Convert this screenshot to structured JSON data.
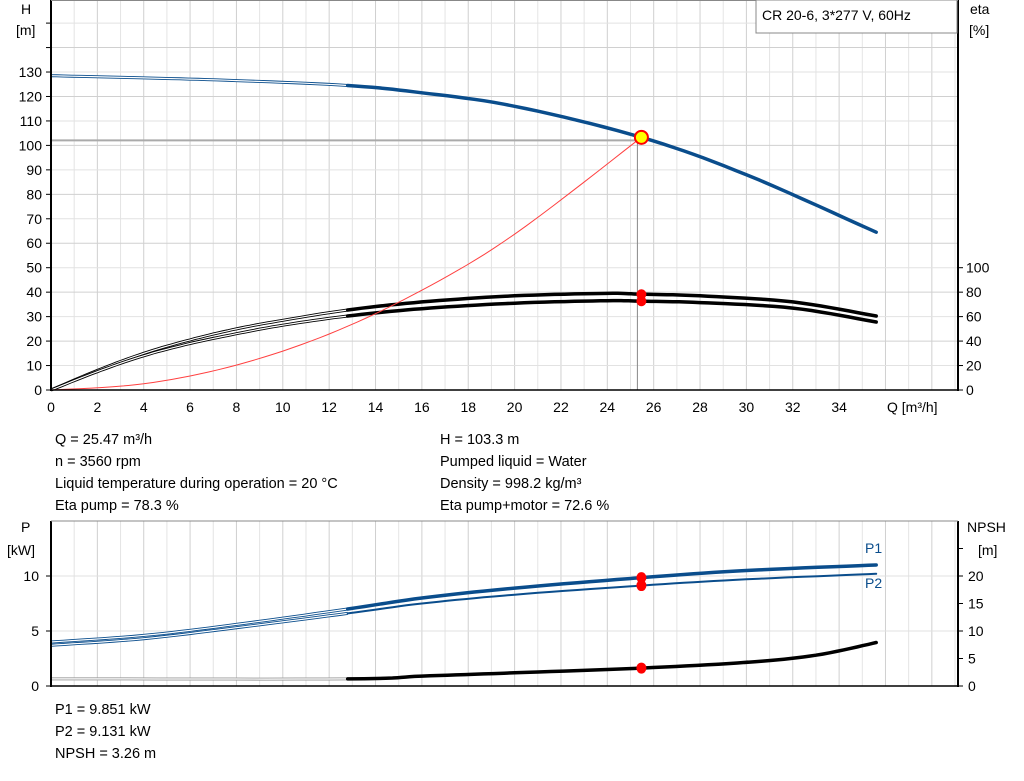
{
  "chart_data": [
    {
      "type": "line",
      "title": "CR 20-6, 3*277 V, 60Hz",
      "xlabel": "Q [m³/h]",
      "ylabel": "H",
      "ylabel_unit": "[m]",
      "y2label": "eta",
      "y2label_unit": "[%]",
      "xlim": [
        0,
        39
      ],
      "ylim": [
        0,
        159
      ],
      "y2lim": [
        0,
        318
      ],
      "x_ticks": [
        0,
        2,
        4,
        6,
        8,
        10,
        12,
        14,
        16,
        18,
        20,
        22,
        24,
        26,
        28,
        30,
        32,
        34
      ],
      "y_ticks": [
        0,
        10,
        20,
        30,
        40,
        50,
        60,
        70,
        80,
        90,
        100,
        110,
        120,
        130
      ],
      "y2_ticks": [
        0,
        20,
        40,
        60,
        80,
        100
      ],
      "grid": true,
      "operating_point": {
        "Q": 25.47,
        "H": 103.3,
        "eta_pump": 78.3,
        "eta_pump_motor": 72.6
      },
      "series": [
        {
          "key": "H",
          "axis": "left",
          "color": "#0a4d8c",
          "thin_until": 12.8,
          "points": [
            [
              0,
              128.5
            ],
            [
              4,
              127.6
            ],
            [
              8,
              126.5
            ],
            [
              12.8,
              124.5
            ],
            [
              16,
              121.5
            ],
            [
              20,
              116
            ],
            [
              25.47,
              103.3
            ],
            [
              30,
              88
            ],
            [
              35.6,
              64.5
            ]
          ]
        },
        {
          "key": "eta_pump",
          "axis": "right",
          "color": "#000000",
          "thin_until": 12.8,
          "points": [
            [
              0,
              0
            ],
            [
              2,
              16
            ],
            [
              4,
              30
            ],
            [
              6,
              41
            ],
            [
              8,
              50
            ],
            [
              10,
              57
            ],
            [
              12.8,
              65.4
            ],
            [
              16,
              72
            ],
            [
              20,
              77
            ],
            [
              24,
              79
            ],
            [
              25.47,
              78.3
            ],
            [
              28,
              77
            ],
            [
              32,
              72
            ],
            [
              35.6,
              60.5
            ]
          ]
        },
        {
          "key": "eta_pump_motor",
          "axis": "right",
          "color": "#000000",
          "thin_until": 12.8,
          "points": [
            [
              0,
              0
            ],
            [
              2,
              15
            ],
            [
              4,
              28
            ],
            [
              6,
              38
            ],
            [
              8,
              46
            ],
            [
              10,
              53
            ],
            [
              12.8,
              60.5
            ],
            [
              16,
              66.5
            ],
            [
              20,
              71
            ],
            [
              24,
              73
            ],
            [
              25.47,
              72.6
            ],
            [
              28,
              71.5
            ],
            [
              32,
              67
            ],
            [
              35.6,
              55.6
            ]
          ]
        },
        {
          "key": "system_curve",
          "axis": "left",
          "color": "#ff4040",
          "points": [
            [
              0,
              0
            ],
            [
              4,
              2.55
            ],
            [
              8,
              10.2
            ],
            [
              12,
              22.9
            ],
            [
              16,
              40.8
            ],
            [
              20,
              63.7
            ],
            [
              25.47,
              103.3
            ]
          ]
        }
      ]
    },
    {
      "type": "line",
      "ylabel": "P",
      "ylabel_unit": "[kW]",
      "y2label": "NPSH",
      "y2label_unit": "[m]",
      "xlim": [
        0,
        39
      ],
      "ylim": [
        0,
        15
      ],
      "y2lim": [
        0,
        30
      ],
      "y_ticks": [
        0,
        5,
        10
      ],
      "y2_ticks": [
        0,
        5,
        10,
        15,
        20
      ],
      "grid": true,
      "operating_point": {
        "Q": 25.47,
        "P1": 9.851,
        "P2": 9.131,
        "NPSH": 3.26
      },
      "series": [
        {
          "name": "P1",
          "axis": "left",
          "color": "#0a4d8c",
          "width": 3.5,
          "thin_until": 12.8,
          "points": [
            [
              0,
              4.0
            ],
            [
              4,
              4.6
            ],
            [
              8,
              5.6
            ],
            [
              12.8,
              7.0
            ],
            [
              16,
              8.0
            ],
            [
              20,
              8.9
            ],
            [
              25.47,
              9.851
            ],
            [
              30,
              10.5
            ],
            [
              35.6,
              11.0
            ]
          ]
        },
        {
          "name": "P2",
          "axis": "left",
          "color": "#0a4d8c",
          "width": 2,
          "thin_until": 12.8,
          "points": [
            [
              0,
              3.7
            ],
            [
              4,
              4.3
            ],
            [
              8,
              5.3
            ],
            [
              12.8,
              6.6
            ],
            [
              16,
              7.5
            ],
            [
              20,
              8.3
            ],
            [
              25.47,
              9.131
            ],
            [
              30,
              9.7
            ],
            [
              35.6,
              10.2
            ]
          ]
        },
        {
          "key": "NPSH",
          "axis": "right",
          "color": "#000000",
          "width": 3.5,
          "thin_until": 12.8,
          "points": [
            [
              0,
              1.3
            ],
            [
              12.8,
              1.3
            ],
            [
              16,
              1.8
            ],
            [
              20,
              2.4
            ],
            [
              25.47,
              3.26
            ],
            [
              30,
              4.3
            ],
            [
              33,
              5.6
            ],
            [
              35.6,
              7.9
            ]
          ]
        }
      ]
    }
  ],
  "info_top": {
    "left": [
      "Q = 25.47 m³/h",
      "n = 3560 rpm",
      "Liquid temperature during operation = 20 °C",
      "Eta pump = 78.3 %"
    ],
    "right": [
      "H = 103.3 m",
      "Pumped liquid = Water",
      "Density = 998.2 kg/m³",
      "Eta pump+motor = 72.6 %"
    ]
  },
  "info_bottom": [
    "P1 = 9.851 kW",
    "P2 = 9.131 kW",
    "NPSH = 3.26 m"
  ],
  "colors": {
    "accent": "#0a4d8c",
    "marker": "#ff0000",
    "op_fill": "#ffff00",
    "grid": "#d4d4d4"
  }
}
